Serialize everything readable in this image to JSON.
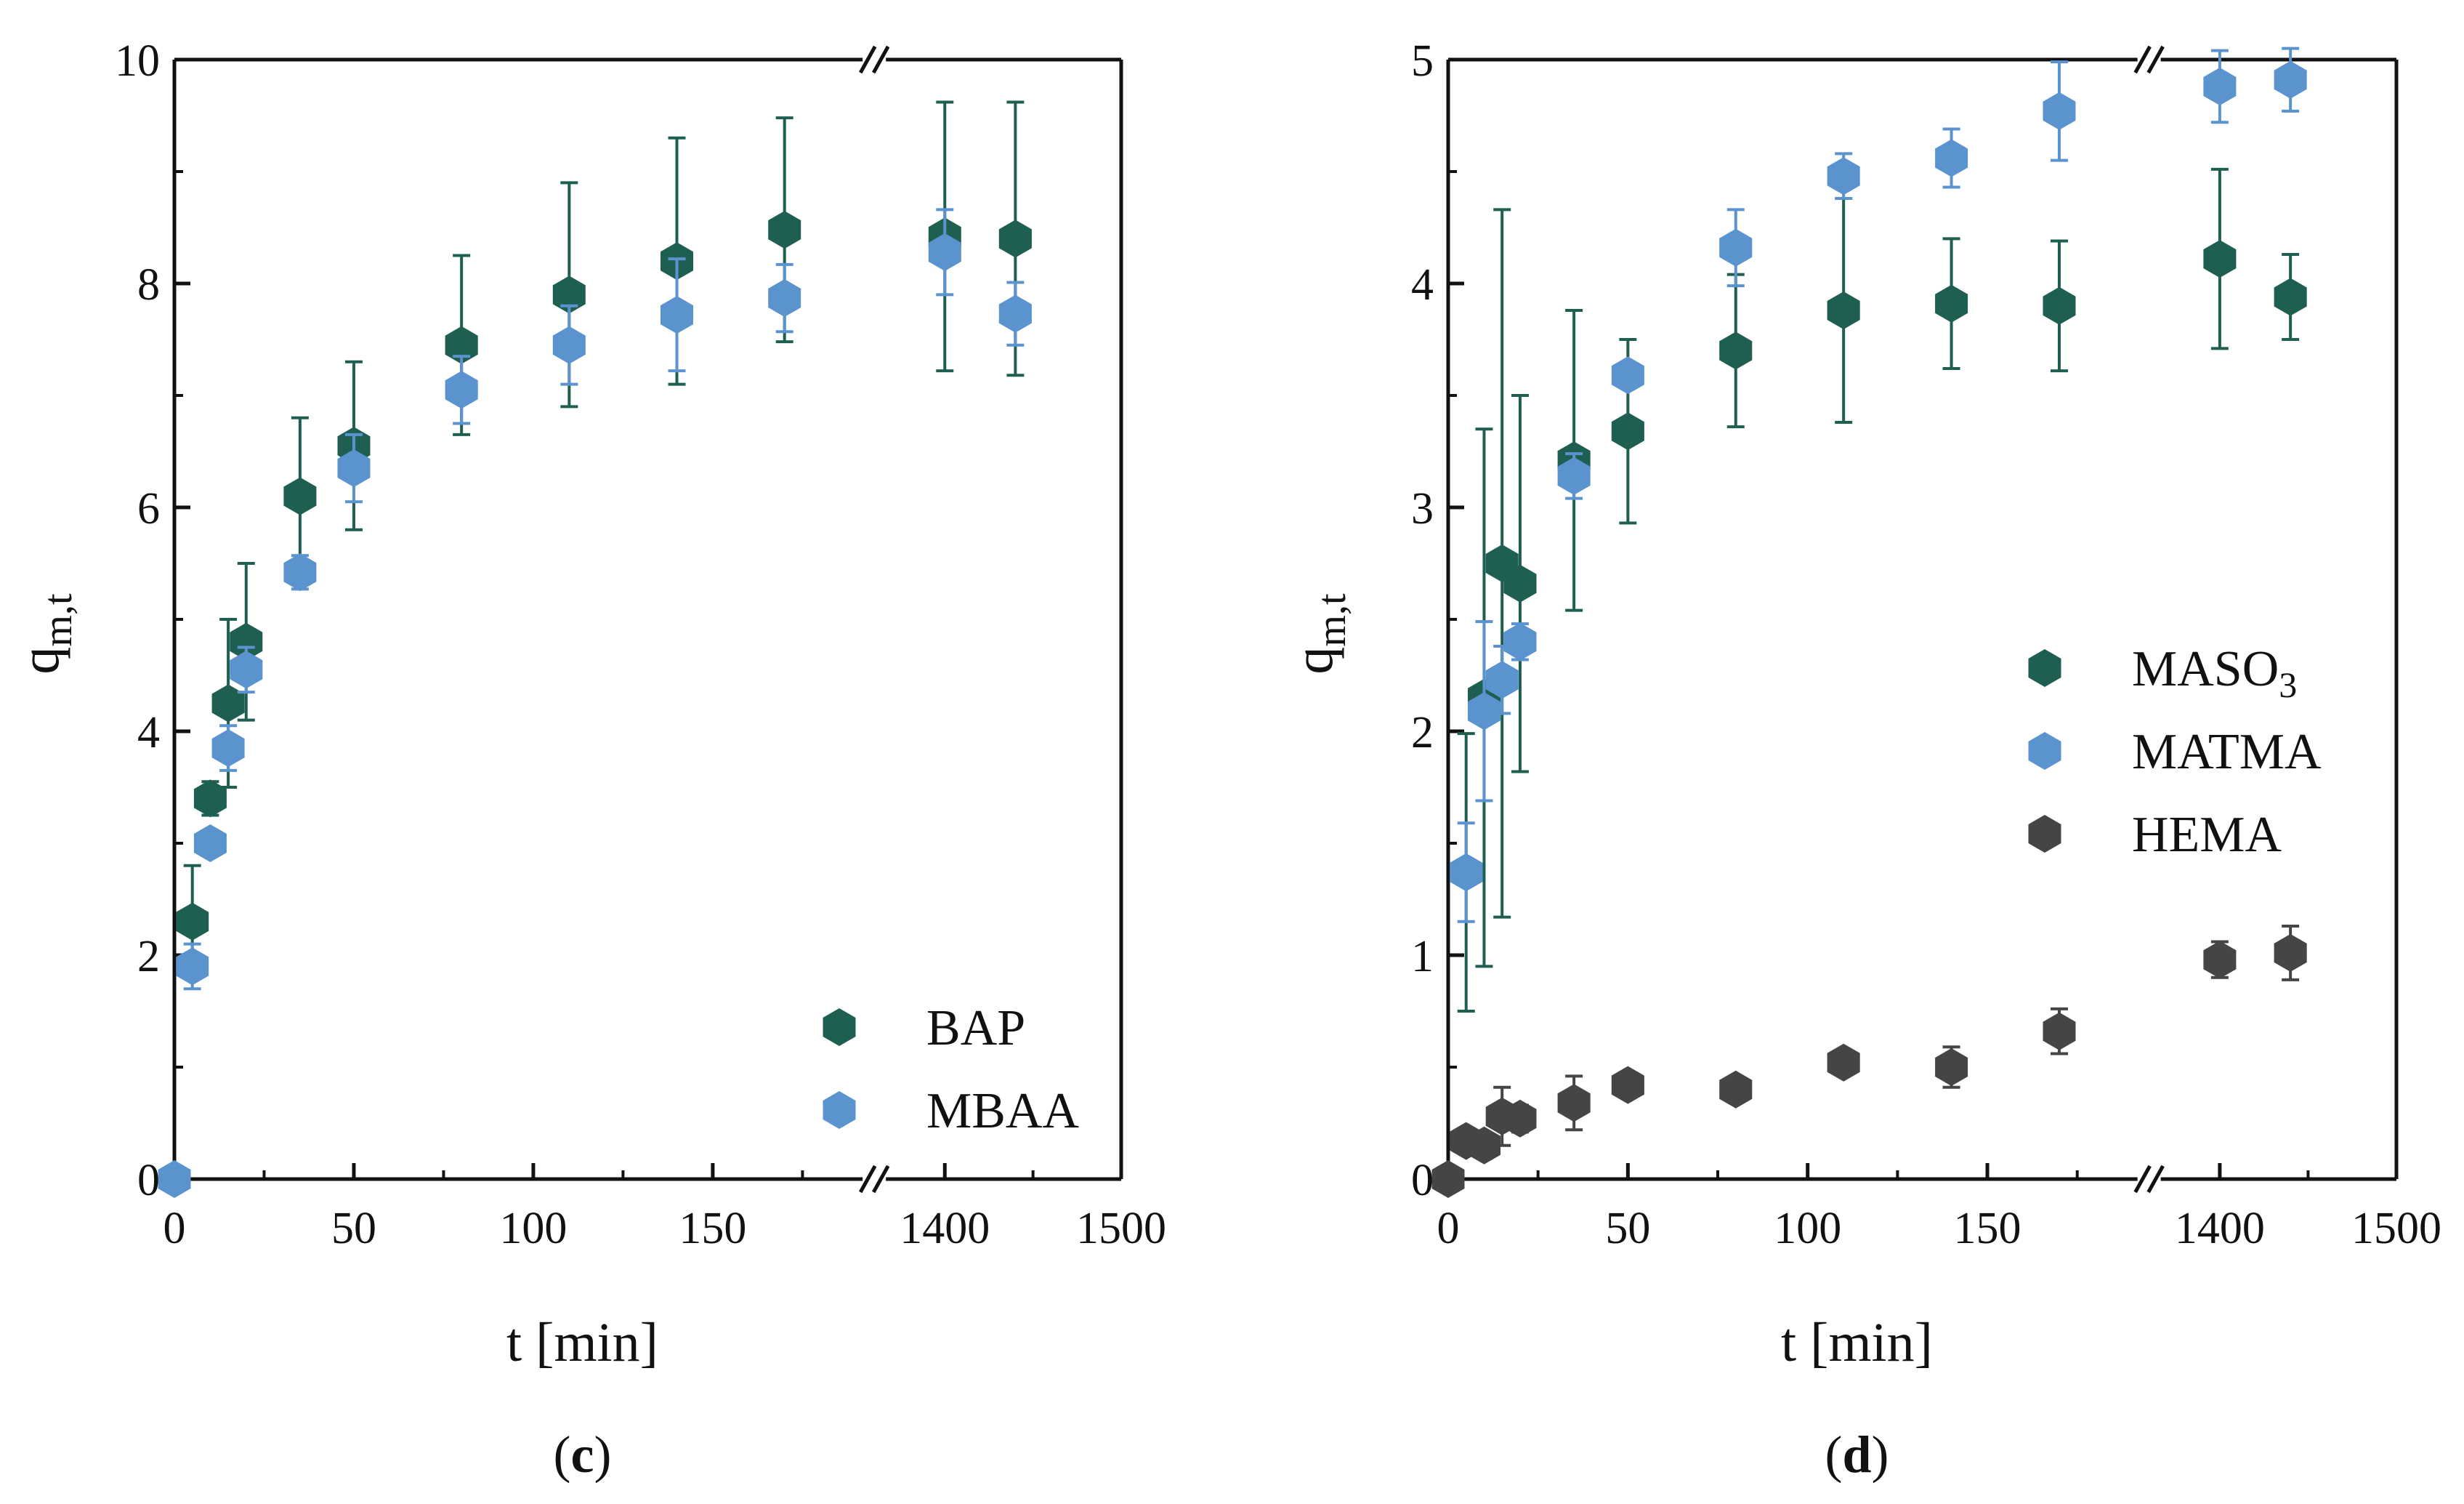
{
  "chart_data": [
    {
      "type": "scatter",
      "panel_label": {
        "open": "(",
        "letter": "c",
        "close": ")"
      },
      "xlabel": "t [min]",
      "ylabel": {
        "base": "q",
        "sub": "m,t"
      },
      "xlim_segments": [
        [
          0,
          195
        ],
        [
          1360,
          1500
        ]
      ],
      "x_ticks": [
        0,
        50,
        100,
        150,
        1400,
        1500
      ],
      "ylim": [
        0,
        10
      ],
      "y_ticks": [
        0,
        2,
        4,
        6,
        8,
        10
      ],
      "axis_break": true,
      "legend_position": "bottom-right",
      "series": [
        {
          "name": "BAP",
          "color": "#1e5f52",
          "points": [
            {
              "x": 5,
              "y": 2.3,
              "err": 0.5
            },
            {
              "x": 10,
              "y": 3.4,
              "err": 0.15
            },
            {
              "x": 15,
              "y": 4.25,
              "err": 0.75
            },
            {
              "x": 20,
              "y": 4.8,
              "err": 0.7
            },
            {
              "x": 35,
              "y": 6.1,
              "err": 0.7
            },
            {
              "x": 50,
              "y": 6.55,
              "err": 0.75
            },
            {
              "x": 80,
              "y": 7.45,
              "err": 0.8
            },
            {
              "x": 110,
              "y": 7.9,
              "err": 1.0
            },
            {
              "x": 140,
              "y": 8.2,
              "err": 1.1
            },
            {
              "x": 170,
              "y": 8.48,
              "err": 1.0
            },
            {
              "x": 1400,
              "y": 8.42,
              "err": 1.2
            },
            {
              "x": 1440,
              "y": 8.4,
              "err": 1.22
            }
          ]
        },
        {
          "name": "MBAA",
          "color": "#5b93cf",
          "points": [
            {
              "x": 0,
              "y": 0,
              "err": 0
            },
            {
              "x": 5,
              "y": 1.9,
              "err": 0.2
            },
            {
              "x": 10,
              "y": 3.0,
              "err": 0.1
            },
            {
              "x": 15,
              "y": 3.85,
              "err": 0.2
            },
            {
              "x": 20,
              "y": 4.55,
              "err": 0.2
            },
            {
              "x": 35,
              "y": 5.42,
              "err": 0.15
            },
            {
              "x": 50,
              "y": 6.35,
              "err": 0.3
            },
            {
              "x": 80,
              "y": 7.05,
              "err": 0.3
            },
            {
              "x": 110,
              "y": 7.45,
              "err": 0.35
            },
            {
              "x": 140,
              "y": 7.72,
              "err": 0.5
            },
            {
              "x": 170,
              "y": 7.87,
              "err": 0.3
            },
            {
              "x": 1400,
              "y": 8.28,
              "err": 0.38
            },
            {
              "x": 1440,
              "y": 7.73,
              "err": 0.28
            }
          ]
        }
      ]
    },
    {
      "type": "scatter",
      "panel_label": {
        "open": "(",
        "letter": "d",
        "close": ")"
      },
      "xlabel": "t [min]",
      "ylabel": {
        "base": "q",
        "sub": "m,t"
      },
      "xlim_segments": [
        [
          0,
          195
        ],
        [
          1360,
          1500
        ]
      ],
      "x_ticks": [
        0,
        50,
        100,
        150,
        1400,
        1500
      ],
      "ylim": [
        0,
        5
      ],
      "y_ticks": [
        0,
        1,
        2,
        3,
        4,
        5
      ],
      "axis_break": true,
      "legend_position": "center-right",
      "series": [
        {
          "name": "MASO",
          "name_sub": "3",
          "color": "#1e5f52",
          "points": [
            {
              "x": 5,
              "y": 1.37,
              "err": 0.62
            },
            {
              "x": 10,
              "y": 2.15,
              "err": 1.2
            },
            {
              "x": 15,
              "y": 2.75,
              "err": 1.58
            },
            {
              "x": 20,
              "y": 2.66,
              "err": 0.84
            },
            {
              "x": 35,
              "y": 3.21,
              "err": 0.67
            },
            {
              "x": 50,
              "y": 3.34,
              "err": 0.41
            },
            {
              "x": 80,
              "y": 3.7,
              "err": 0.34
            },
            {
              "x": 110,
              "y": 3.88,
              "err": 0.5
            },
            {
              "x": 140,
              "y": 3.91,
              "err": 0.29
            },
            {
              "x": 170,
              "y": 3.9,
              "err": 0.29
            },
            {
              "x": 1400,
              "y": 4.11,
              "err": 0.4
            },
            {
              "x": 1440,
              "y": 3.94,
              "err": 0.19
            }
          ]
        },
        {
          "name": "MATMA",
          "color": "#5b93cf",
          "points": [
            {
              "x": 5,
              "y": 1.37,
              "err": 0.22
            },
            {
              "x": 10,
              "y": 2.09,
              "err": 0.4
            },
            {
              "x": 15,
              "y": 2.23,
              "err": 0.15
            },
            {
              "x": 20,
              "y": 2.4,
              "err": 0.08
            },
            {
              "x": 35,
              "y": 3.14,
              "err": 0.1
            },
            {
              "x": 50,
              "y": 3.59,
              "err": 0.05
            },
            {
              "x": 80,
              "y": 4.16,
              "err": 0.17
            },
            {
              "x": 110,
              "y": 4.48,
              "err": 0.1
            },
            {
              "x": 140,
              "y": 4.56,
              "err": 0.13
            },
            {
              "x": 170,
              "y": 4.77,
              "err": 0.22
            },
            {
              "x": 1400,
              "y": 4.88,
              "err": 0.16
            },
            {
              "x": 1440,
              "y": 4.91,
              "err": 0.14
            }
          ]
        },
        {
          "name": "HEMA",
          "color": "#454545",
          "points": [
            {
              "x": 0,
              "y": 0,
              "err": 0
            },
            {
              "x": 5,
              "y": 0.17,
              "err": 0.05
            },
            {
              "x": 10,
              "y": 0.15,
              "err": 0.04
            },
            {
              "x": 15,
              "y": 0.28,
              "err": 0.13
            },
            {
              "x": 20,
              "y": 0.27,
              "err": 0.06
            },
            {
              "x": 35,
              "y": 0.34,
              "err": 0.12
            },
            {
              "x": 50,
              "y": 0.42,
              "err": 0.05
            },
            {
              "x": 80,
              "y": 0.4,
              "err": 0.03
            },
            {
              "x": 110,
              "y": 0.52,
              "err": 0.04
            },
            {
              "x": 140,
              "y": 0.5,
              "err": 0.09
            },
            {
              "x": 170,
              "y": 0.66,
              "err": 0.1
            },
            {
              "x": 1400,
              "y": 0.98,
              "err": 0.08
            },
            {
              "x": 1440,
              "y": 1.01,
              "err": 0.12
            }
          ]
        }
      ]
    }
  ]
}
